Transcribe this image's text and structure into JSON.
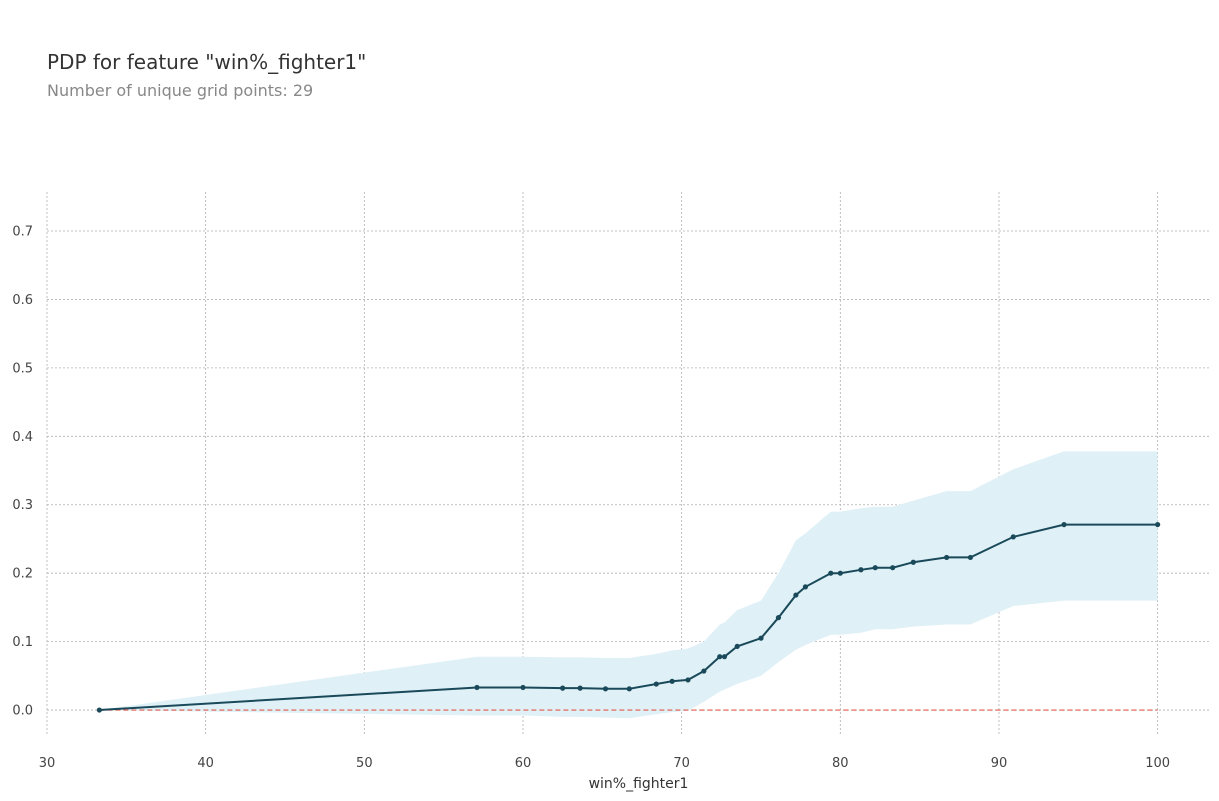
{
  "header": {
    "title": "PDP for feature \"win%_fighter1\"",
    "subtitle": "Number of unique grid points: 29"
  },
  "colors": {
    "line": "#1a4a5a",
    "band": "#dff0f7",
    "baseline": "#e05a4a",
    "grid": "#b0b0b0"
  },
  "chart_data": {
    "type": "line",
    "title": "PDP for feature \"win%_fighter1\"",
    "subtitle": "Number of unique grid points: 29",
    "xlabel": "win%_fighter1",
    "ylabel": "",
    "xlim": [
      30,
      103.3
    ],
    "ylim": [
      -0.035,
      0.757
    ],
    "grid": true,
    "x_ticks": [
      30,
      40,
      50,
      60,
      70,
      80,
      90,
      100
    ],
    "y_ticks": [
      0.0,
      0.1,
      0.2,
      0.3,
      0.4,
      0.5,
      0.6,
      0.7
    ],
    "y_tick_labels": [
      "0.0",
      "0.1",
      "0.2",
      "0.3",
      "0.4",
      "0.5",
      "0.6",
      "0.7"
    ],
    "x": [
      33.3,
      57.1,
      60.0,
      62.5,
      63.6,
      65.2,
      66.7,
      68.4,
      69.4,
      70.4,
      71.4,
      72.4,
      72.7,
      73.5,
      75.0,
      76.1,
      77.2,
      77.8,
      79.4,
      80.0,
      81.3,
      82.2,
      83.3,
      84.6,
      86.7,
      88.2,
      90.9,
      94.1,
      100.0
    ],
    "series": [
      {
        "values": [
          0.0,
          0.033,
          0.033,
          0.032,
          0.032,
          0.031,
          0.031,
          0.038,
          0.042,
          0.044,
          0.057,
          0.078,
          0.078,
          0.093,
          0.105,
          0.135,
          0.168,
          0.18,
          0.2,
          0.2,
          0.205,
          0.208,
          0.208,
          0.216,
          0.223,
          0.223,
          0.253,
          0.271,
          0.271
        ]
      }
    ],
    "band_upper": [
      0.0,
      0.078,
      0.078,
      0.077,
      0.077,
      0.076,
      0.076,
      0.082,
      0.087,
      0.09,
      0.1,
      0.125,
      0.128,
      0.146,
      0.16,
      0.2,
      0.248,
      0.258,
      0.29,
      0.29,
      0.295,
      0.297,
      0.297,
      0.306,
      0.32,
      0.32,
      0.352,
      0.378,
      0.378
    ],
    "band_lower": [
      0.0,
      -0.008,
      -0.008,
      -0.01,
      -0.01,
      -0.011,
      -0.012,
      -0.006,
      -0.003,
      -0.001,
      0.012,
      0.027,
      0.03,
      0.038,
      0.05,
      0.07,
      0.088,
      0.095,
      0.11,
      0.11,
      0.113,
      0.118,
      0.118,
      0.122,
      0.125,
      0.125,
      0.152,
      0.16,
      0.16
    ],
    "baseline": 0.0
  }
}
